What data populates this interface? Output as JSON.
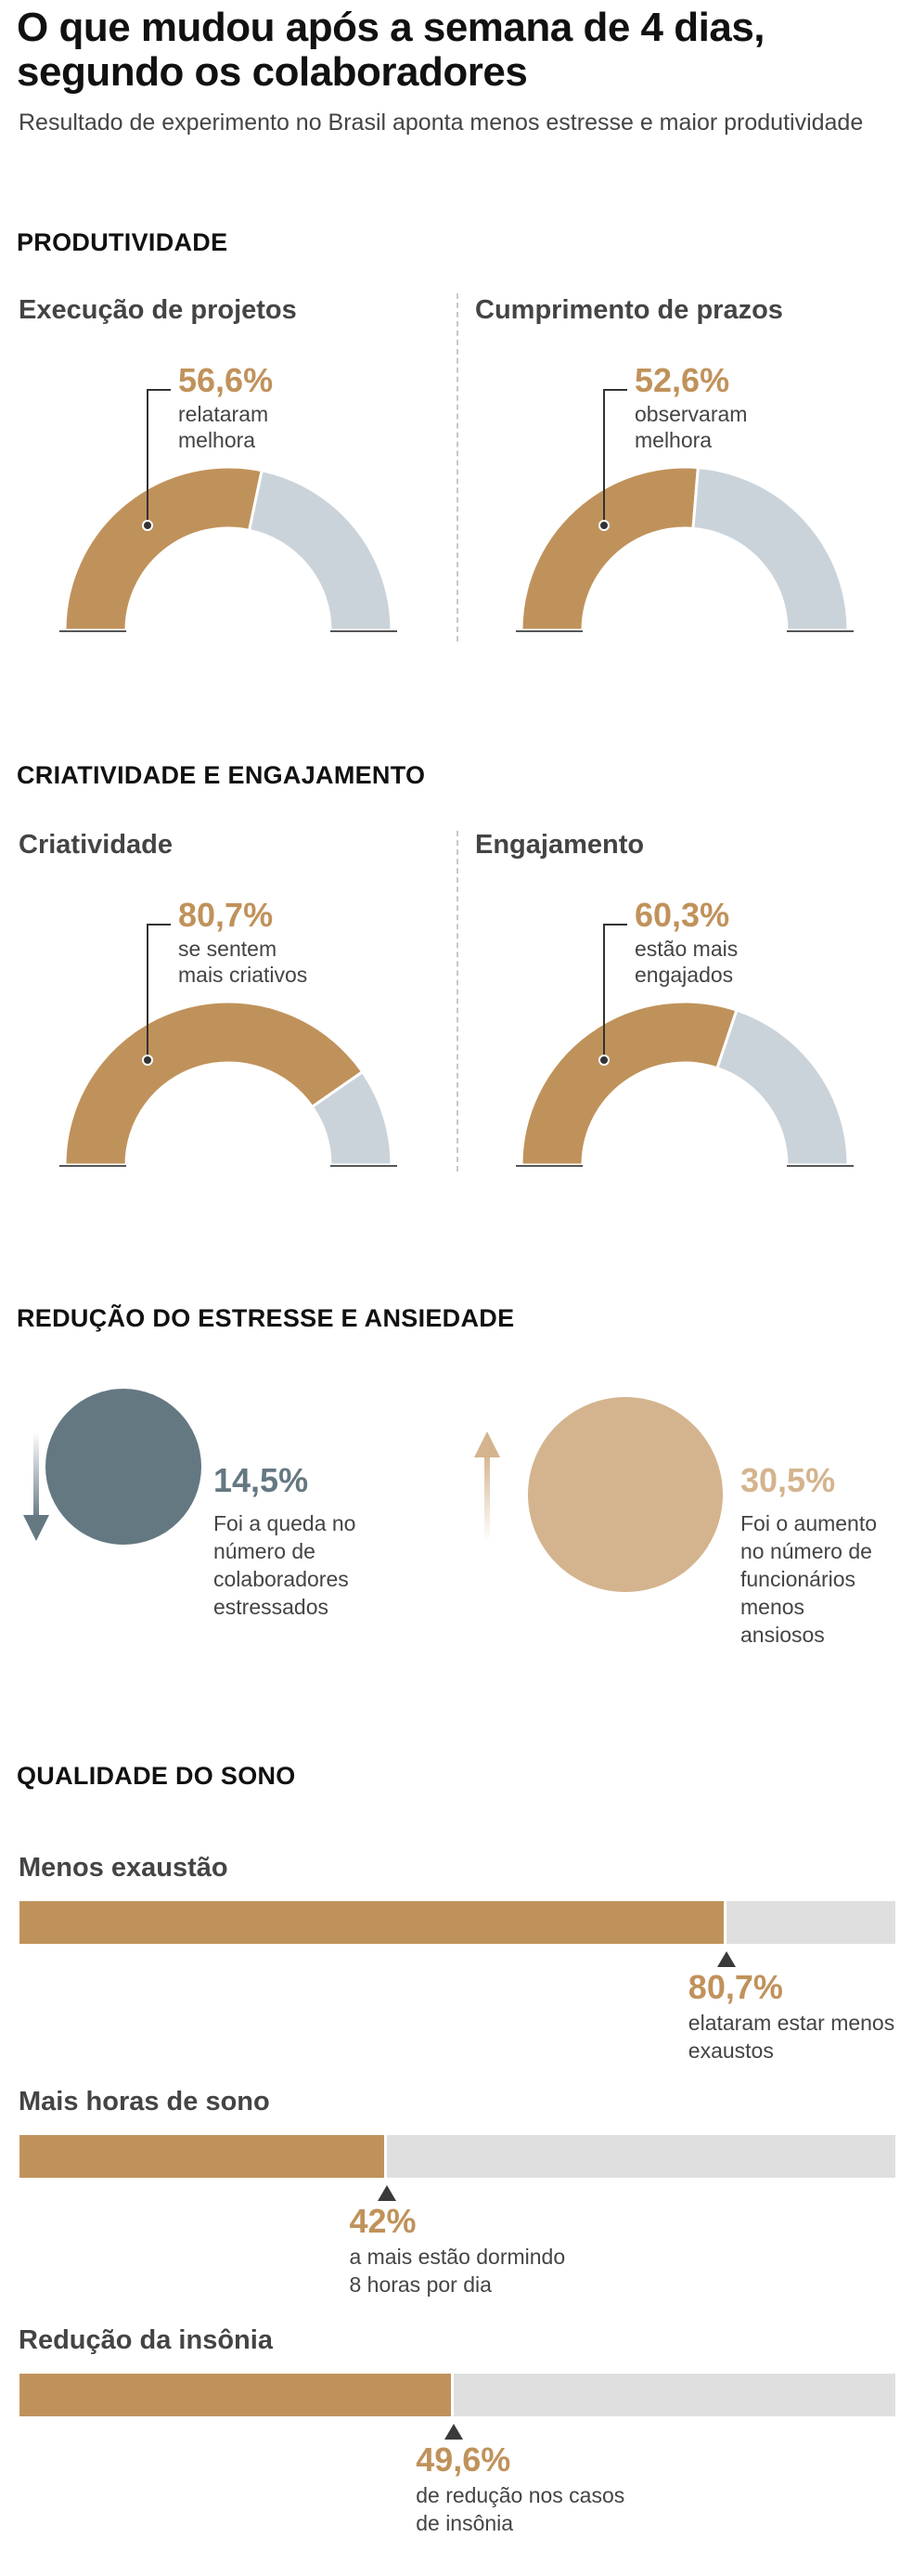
{
  "header": {
    "title_line1": "O que mudou após a semana de 4 dias,",
    "title_line2": "segundo os colaboradores",
    "subtitle": "Resultado de experimento no Brasil aponta menos estresse e maior produtividade"
  },
  "sections": {
    "productivity": "PRODUTIVIDADE",
    "creativity": "CRIATIVIDADE E ENGAJAMENTO",
    "stress": "REDUÇÃO DO ESTRESSE E ANSIEDADE",
    "sleep": "QUALIDADE DO SONO"
  },
  "colors": {
    "accent": "#C0925B",
    "remainder": "#CBD3DA",
    "bar_track": "#DFDFDF",
    "stress": "#647882",
    "anxiety": "#D4B48E"
  },
  "chart_data": [
    {
      "type": "pie",
      "subtype": "semi-donut gauges",
      "items": [
        {
          "label": "Execução de projetos",
          "value": 56.6,
          "value_text": "56,6%",
          "caption": [
            "relataram",
            "melhora"
          ]
        },
        {
          "label": "Cumprimento de prazos",
          "value": 52.6,
          "value_text": "52,6%",
          "caption": [
            "observaram",
            "melhora"
          ]
        },
        {
          "label": "Criatividade",
          "value": 80.7,
          "value_text": "80,7%",
          "caption": [
            "se sentem",
            "mais criativos"
          ]
        },
        {
          "label": "Engajamento",
          "value": 60.3,
          "value_text": "60,3%",
          "caption": [
            "estão mais",
            "engajados"
          ]
        }
      ]
    },
    {
      "type": "bubble",
      "items": [
        {
          "direction": "down",
          "value": 14.5,
          "value_text": "14,5%",
          "caption": [
            "Foi a queda no",
            "número de",
            "colaboradores",
            "estressados"
          ]
        },
        {
          "direction": "up",
          "value": 30.5,
          "value_text": "30,5%",
          "caption": [
            "Foi o aumento",
            "no número de",
            "funcionários",
            "menos",
            "ansiosos"
          ]
        }
      ]
    },
    {
      "type": "bar",
      "ylim": [
        0,
        100
      ],
      "items": [
        {
          "label": "Menos exaustão",
          "value": 80.7,
          "value_text": "80,7%",
          "caption": [
            "elataram estar menos",
            "exaustos"
          ]
        },
        {
          "label": "Mais horas de sono",
          "value": 42,
          "value_text": "42%",
          "caption": [
            "a mais estão dormindo",
            "8 horas por dia"
          ]
        },
        {
          "label": "Redução da insônia",
          "value": 49.6,
          "value_text": "49,6%",
          "caption": [
            "de redução nos casos",
            "de insônia"
          ]
        }
      ]
    }
  ]
}
